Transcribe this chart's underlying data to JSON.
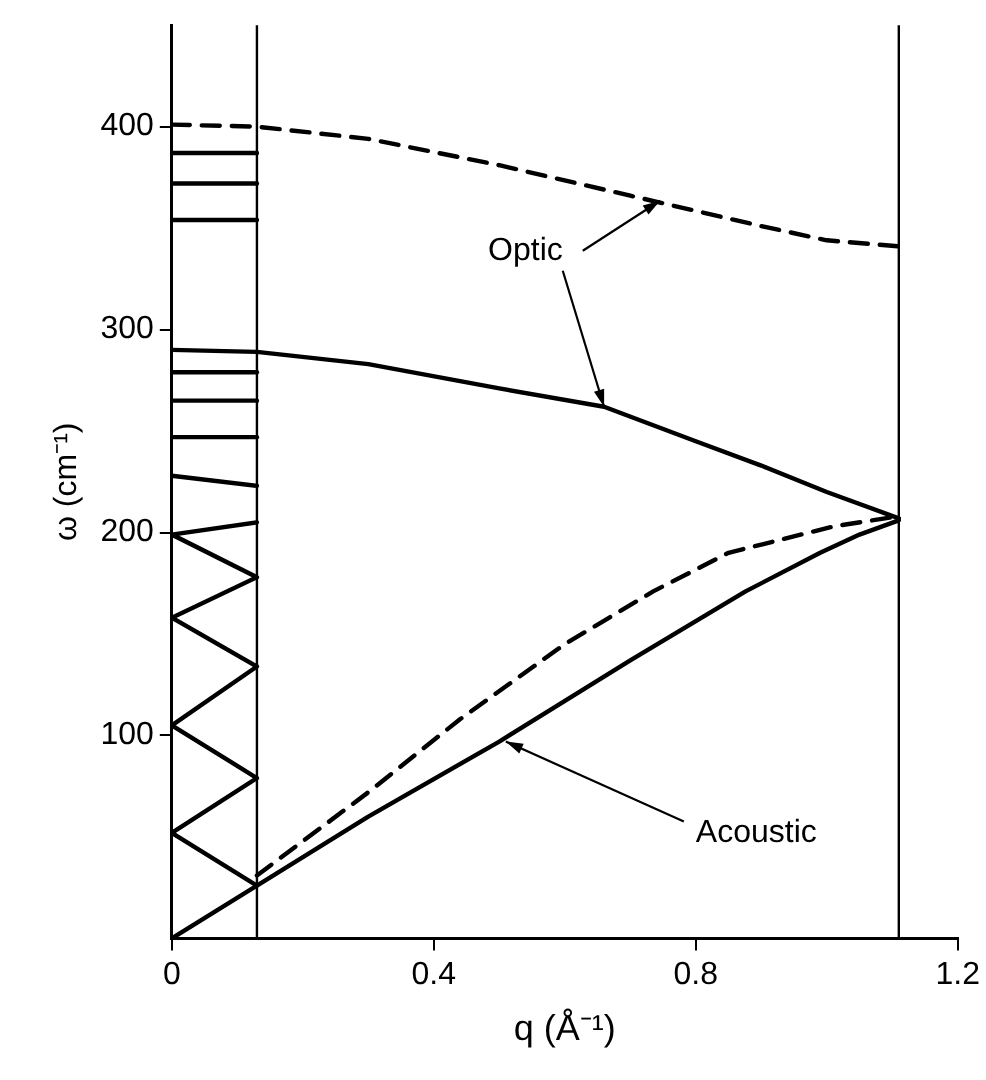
{
  "chart_data": {
    "type": "line",
    "xlabel": "q (Å⁻¹)",
    "ylabel": "ω (cm⁻¹)",
    "xlim": [
      0,
      1.2
    ],
    "xticks": [
      0,
      0.4,
      0.8,
      1.2
    ],
    "ylim": [
      0,
      450
    ],
    "yticks": [
      100,
      200,
      300,
      400
    ],
    "grid": false,
    "legend": false,
    "marker": "none",
    "series": [
      {
        "color": "#000000",
        "line_style": "dashed",
        "x": [
          0,
          0.13,
          0.3,
          0.5,
          0.7,
          0.9,
          1.0,
          1.11
        ],
        "values": [
          401,
          400,
          394,
          381,
          366,
          351,
          344,
          341
        ]
      },
      {
        "color": "#000000",
        "line_style": "solid",
        "x": [
          0,
          0.13,
          0.3,
          0.5,
          0.66,
          0.8,
          0.9,
          1.0,
          1.11
        ],
        "values": [
          290,
          289,
          283,
          271,
          262,
          245,
          233,
          220,
          207
        ]
      },
      {
        "color": "#000000",
        "line_style": "dashed",
        "x": [
          0.13,
          0.3,
          0.44,
          0.6,
          0.735,
          0.85,
          1.01,
          1.11
        ],
        "values": [
          31,
          72,
          108,
          145,
          171,
          190,
          203,
          208
        ]
      },
      {
        "color": "#000000",
        "line_style": "solid",
        "x": [
          0,
          0.13,
          0.3,
          0.5,
          0.7,
          0.876,
          0.99,
          1.05,
          1.11
        ],
        "values": [
          0,
          26,
          60,
          97,
          137,
          171,
          190,
          199,
          206
        ]
      },
      {
        "color": "#000000",
        "line_style": "solid",
        "x": [
          0.13,
          0,
          0.13,
          0,
          0.13,
          0,
          0.13,
          0,
          0.13
        ],
        "values": [
          26,
          52,
          79,
          105,
          134,
          158,
          178,
          199,
          205
        ]
      },
      {
        "color": "#000000",
        "line_style": "solid",
        "x": [
          0,
          0.13
        ],
        "values": [
          228,
          223
        ]
      },
      {
        "color": "#000000",
        "line_style": "solid",
        "x": [
          0,
          0.13
        ],
        "values": [
          247,
          247
        ]
      },
      {
        "color": "#000000",
        "line_style": "solid",
        "x": [
          0,
          0.13
        ],
        "values": [
          265,
          265
        ]
      },
      {
        "color": "#000000",
        "line_style": "solid",
        "x": [
          0,
          0.13
        ],
        "values": [
          279,
          279
        ]
      },
      {
        "color": "#000000",
        "line_style": "solid",
        "x": [
          0,
          0.13
        ],
        "values": [
          354,
          354
        ]
      },
      {
        "color": "#000000",
        "line_style": "solid",
        "x": [
          0,
          0.13
        ],
        "values": [
          372,
          372
        ]
      },
      {
        "color": "#000000",
        "line_style": "solid",
        "x": [
          0,
          0.13
        ],
        "values": [
          387,
          387
        ]
      }
    ],
    "ref_lines": [
      {
        "axis": "x",
        "value": 0.13,
        "color": "#000000"
      },
      {
        "axis": "x",
        "value": 1.11,
        "color": "#000000"
      }
    ],
    "annotations": [
      {
        "text": "Optic",
        "x": 0.66,
        "y": 262
      },
      {
        "text": "Acoustic",
        "x": 0.51,
        "y": 97
      }
    ]
  }
}
